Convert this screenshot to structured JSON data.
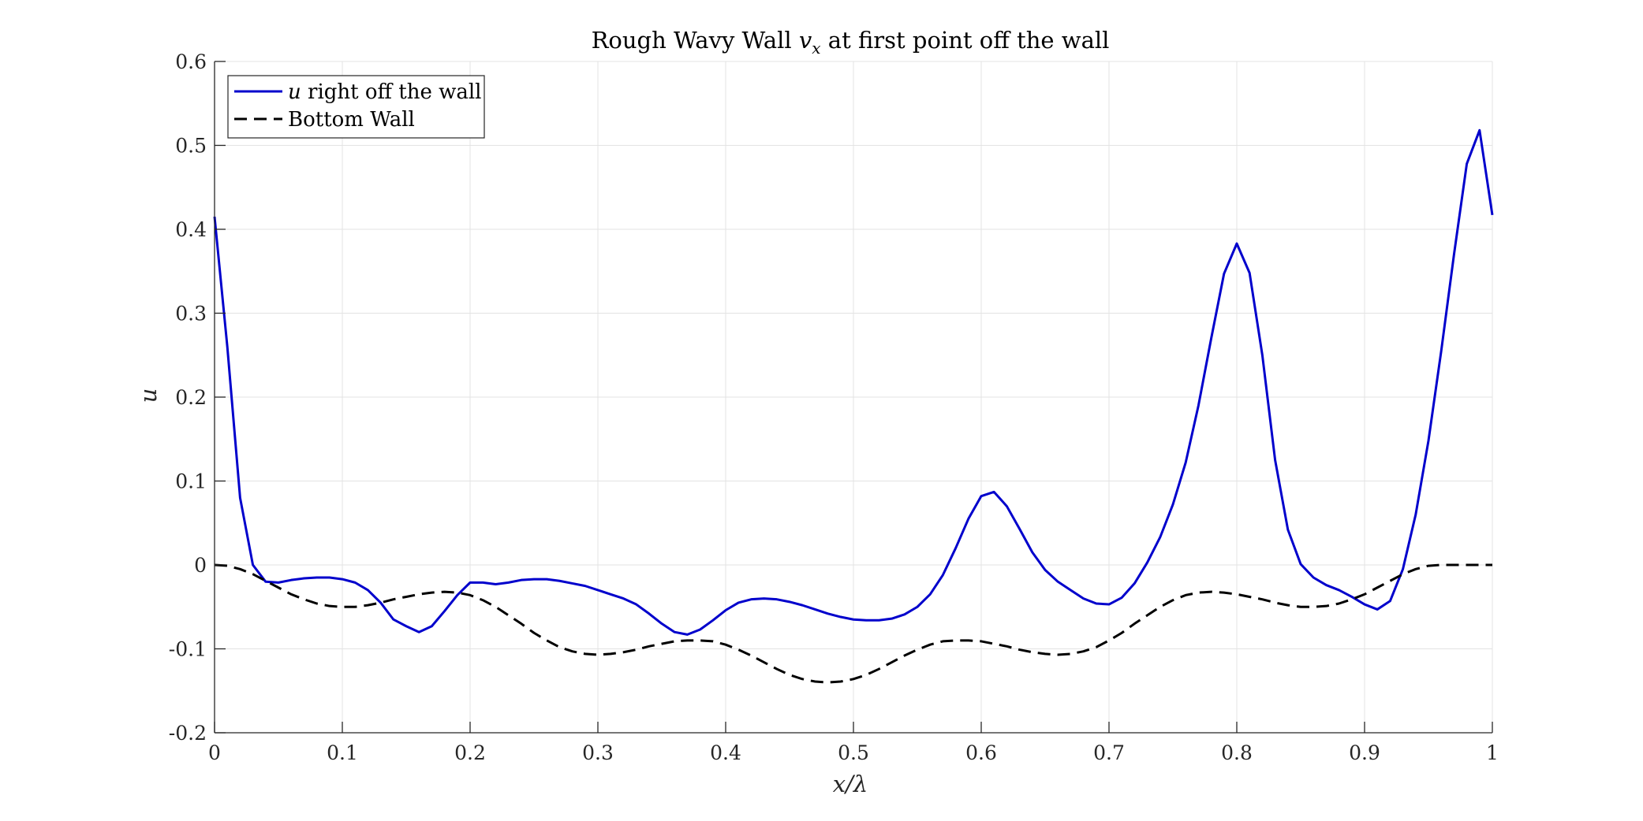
{
  "chart_data": {
    "type": "line",
    "title_plain": "Rough Wavy Wall ",
    "title_math": "v",
    "title_sub": "x",
    "title_rest": " at first point off the wall",
    "xlabel": "x/λ",
    "ylabel": "u",
    "xlim": [
      0,
      1
    ],
    "ylim": [
      -0.2,
      0.6
    ],
    "xticks": [
      0,
      0.1,
      0.2,
      0.3,
      0.4,
      0.5,
      0.6,
      0.7,
      0.8,
      0.9,
      1
    ],
    "xtick_labels": [
      "0",
      "0.1",
      "0.2",
      "0.3",
      "0.4",
      "0.5",
      "0.6",
      "0.7",
      "0.8",
      "0.9",
      "1"
    ],
    "yticks": [
      -0.2,
      -0.1,
      0,
      0.1,
      0.2,
      0.3,
      0.4,
      0.5,
      0.6
    ],
    "ytick_labels": [
      "-0.2",
      "-0.1",
      "0",
      "0.1",
      "0.2",
      "0.3",
      "0.4",
      "0.5",
      "0.6"
    ],
    "grid": true,
    "legend_position": "top-left",
    "legend": {
      "items": [
        {
          "math": "u",
          "text": " right off the wall"
        },
        {
          "math": "",
          "text": "Bottom Wall"
        }
      ]
    },
    "series": [
      {
        "name": "u right off the wall",
        "color": "#0000CC",
        "style": "solid",
        "points": [
          [
            0,
            0.415
          ],
          [
            0.01,
            0.26
          ],
          [
            0.02,
            0.08
          ],
          [
            0.03,
            0.0
          ],
          [
            0.04,
            -0.02
          ],
          [
            0.05,
            -0.021
          ],
          [
            0.06,
            -0.018
          ],
          [
            0.07,
            -0.016
          ],
          [
            0.08,
            -0.015
          ],
          [
            0.09,
            -0.015
          ],
          [
            0.1,
            -0.017
          ],
          [
            0.11,
            -0.021
          ],
          [
            0.12,
            -0.03
          ],
          [
            0.13,
            -0.045
          ],
          [
            0.14,
            -0.065
          ],
          [
            0.15,
            -0.073
          ],
          [
            0.16,
            -0.08
          ],
          [
            0.17,
            -0.073
          ],
          [
            0.18,
            -0.055
          ],
          [
            0.19,
            -0.036
          ],
          [
            0.2,
            -0.021
          ],
          [
            0.21,
            -0.021
          ],
          [
            0.22,
            -0.023
          ],
          [
            0.23,
            -0.021
          ],
          [
            0.24,
            -0.018
          ],
          [
            0.25,
            -0.017
          ],
          [
            0.26,
            -0.017
          ],
          [
            0.27,
            -0.019
          ],
          [
            0.28,
            -0.022
          ],
          [
            0.29,
            -0.025
          ],
          [
            0.3,
            -0.03
          ],
          [
            0.31,
            -0.035
          ],
          [
            0.32,
            -0.04
          ],
          [
            0.33,
            -0.047
          ],
          [
            0.34,
            -0.058
          ],
          [
            0.35,
            -0.07
          ],
          [
            0.36,
            -0.08
          ],
          [
            0.37,
            -0.083
          ],
          [
            0.38,
            -0.077
          ],
          [
            0.39,
            -0.066
          ],
          [
            0.4,
            -0.054
          ],
          [
            0.41,
            -0.045
          ],
          [
            0.42,
            -0.041
          ],
          [
            0.43,
            -0.04
          ],
          [
            0.44,
            -0.041
          ],
          [
            0.45,
            -0.044
          ],
          [
            0.46,
            -0.048
          ],
          [
            0.47,
            -0.053
          ],
          [
            0.48,
            -0.058
          ],
          [
            0.49,
            -0.062
          ],
          [
            0.5,
            -0.065
          ],
          [
            0.51,
            -0.066
          ],
          [
            0.52,
            -0.066
          ],
          [
            0.53,
            -0.064
          ],
          [
            0.54,
            -0.059
          ],
          [
            0.55,
            -0.05
          ],
          [
            0.56,
            -0.035
          ],
          [
            0.57,
            -0.012
          ],
          [
            0.58,
            0.02
          ],
          [
            0.59,
            0.055
          ],
          [
            0.6,
            0.082
          ],
          [
            0.61,
            0.087
          ],
          [
            0.62,
            0.07
          ],
          [
            0.63,
            0.043
          ],
          [
            0.64,
            0.015
          ],
          [
            0.65,
            -0.006
          ],
          [
            0.66,
            -0.02
          ],
          [
            0.67,
            -0.03
          ],
          [
            0.68,
            -0.04
          ],
          [
            0.69,
            -0.046
          ],
          [
            0.7,
            -0.047
          ],
          [
            0.71,
            -0.039
          ],
          [
            0.72,
            -0.022
          ],
          [
            0.73,
            0.003
          ],
          [
            0.74,
            0.033
          ],
          [
            0.75,
            0.072
          ],
          [
            0.76,
            0.122
          ],
          [
            0.77,
            0.19
          ],
          [
            0.78,
            0.27
          ],
          [
            0.79,
            0.347
          ],
          [
            0.8,
            0.383
          ],
          [
            0.81,
            0.348
          ],
          [
            0.82,
            0.25
          ],
          [
            0.83,
            0.125
          ],
          [
            0.84,
            0.042
          ],
          [
            0.85,
            0.001
          ],
          [
            0.86,
            -0.015
          ],
          [
            0.87,
            -0.024
          ],
          [
            0.88,
            -0.03
          ],
          [
            0.89,
            -0.038
          ],
          [
            0.9,
            -0.047
          ],
          [
            0.91,
            -0.053
          ],
          [
            0.92,
            -0.043
          ],
          [
            0.93,
            -0.005
          ],
          [
            0.94,
            0.06
          ],
          [
            0.95,
            0.148
          ],
          [
            0.96,
            0.255
          ],
          [
            0.97,
            0.37
          ],
          [
            0.98,
            0.478
          ],
          [
            0.99,
            0.518
          ],
          [
            1.0,
            0.417
          ]
        ]
      },
      {
        "name": "Bottom Wall",
        "color": "#000000",
        "style": "dashed",
        "points": [
          [
            0,
            0.0
          ],
          [
            0.01,
            -0.001
          ],
          [
            0.02,
            -0.005
          ],
          [
            0.03,
            -0.011
          ],
          [
            0.04,
            -0.019
          ],
          [
            0.05,
            -0.027
          ],
          [
            0.06,
            -0.035
          ],
          [
            0.07,
            -0.041
          ],
          [
            0.08,
            -0.046
          ],
          [
            0.09,
            -0.049
          ],
          [
            0.1,
            -0.05
          ],
          [
            0.11,
            -0.05
          ],
          [
            0.12,
            -0.048
          ],
          [
            0.13,
            -0.045
          ],
          [
            0.14,
            -0.041
          ],
          [
            0.15,
            -0.038
          ],
          [
            0.16,
            -0.035
          ],
          [
            0.17,
            -0.033
          ],
          [
            0.18,
            -0.032
          ],
          [
            0.19,
            -0.033
          ],
          [
            0.2,
            -0.036
          ],
          [
            0.21,
            -0.042
          ],
          [
            0.22,
            -0.05
          ],
          [
            0.23,
            -0.06
          ],
          [
            0.24,
            -0.07
          ],
          [
            0.25,
            -0.081
          ],
          [
            0.26,
            -0.09
          ],
          [
            0.27,
            -0.098
          ],
          [
            0.28,
            -0.103
          ],
          [
            0.29,
            -0.106
          ],
          [
            0.3,
            -0.107
          ],
          [
            0.31,
            -0.106
          ],
          [
            0.32,
            -0.104
          ],
          [
            0.33,
            -0.101
          ],
          [
            0.34,
            -0.097
          ],
          [
            0.35,
            -0.094
          ],
          [
            0.36,
            -0.091
          ],
          [
            0.37,
            -0.09
          ],
          [
            0.38,
            -0.09
          ],
          [
            0.39,
            -0.091
          ],
          [
            0.4,
            -0.095
          ],
          [
            0.41,
            -0.101
          ],
          [
            0.42,
            -0.108
          ],
          [
            0.43,
            -0.116
          ],
          [
            0.44,
            -0.124
          ],
          [
            0.45,
            -0.131
          ],
          [
            0.46,
            -0.136
          ],
          [
            0.47,
            -0.139
          ],
          [
            0.48,
            -0.14
          ],
          [
            0.49,
            -0.139
          ],
          [
            0.5,
            -0.136
          ],
          [
            0.51,
            -0.131
          ],
          [
            0.52,
            -0.124
          ],
          [
            0.53,
            -0.116
          ],
          [
            0.54,
            -0.108
          ],
          [
            0.55,
            -0.101
          ],
          [
            0.56,
            -0.095
          ],
          [
            0.57,
            -0.091
          ],
          [
            0.58,
            -0.09
          ],
          [
            0.59,
            -0.09
          ],
          [
            0.6,
            -0.091
          ],
          [
            0.61,
            -0.094
          ],
          [
            0.62,
            -0.097
          ],
          [
            0.63,
            -0.101
          ],
          [
            0.64,
            -0.104
          ],
          [
            0.65,
            -0.106
          ],
          [
            0.66,
            -0.107
          ],
          [
            0.67,
            -0.106
          ],
          [
            0.68,
            -0.103
          ],
          [
            0.69,
            -0.098
          ],
          [
            0.7,
            -0.09
          ],
          [
            0.71,
            -0.081
          ],
          [
            0.72,
            -0.07
          ],
          [
            0.73,
            -0.06
          ],
          [
            0.74,
            -0.05
          ],
          [
            0.75,
            -0.042
          ],
          [
            0.76,
            -0.036
          ],
          [
            0.77,
            -0.033
          ],
          [
            0.78,
            -0.032
          ],
          [
            0.79,
            -0.033
          ],
          [
            0.8,
            -0.035
          ],
          [
            0.81,
            -0.038
          ],
          [
            0.82,
            -0.041
          ],
          [
            0.83,
            -0.045
          ],
          [
            0.84,
            -0.048
          ],
          [
            0.85,
            -0.05
          ],
          [
            0.86,
            -0.05
          ],
          [
            0.87,
            -0.049
          ],
          [
            0.88,
            -0.046
          ],
          [
            0.89,
            -0.041
          ],
          [
            0.9,
            -0.035
          ],
          [
            0.91,
            -0.027
          ],
          [
            0.92,
            -0.019
          ],
          [
            0.93,
            -0.011
          ],
          [
            0.94,
            -0.005
          ],
          [
            0.95,
            -0.001
          ],
          [
            0.96,
            0.0
          ],
          [
            0.97,
            0.0
          ],
          [
            0.98,
            0.0
          ],
          [
            0.99,
            0.0
          ],
          [
            1.0,
            0.0
          ]
        ]
      }
    ]
  }
}
